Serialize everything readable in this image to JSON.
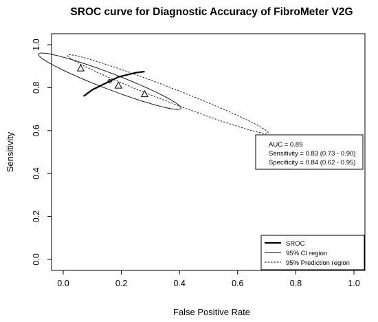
{
  "chart_data": {
    "type": "scatter",
    "title": "SROC curve for Diagnostic Accuracy of FibroMeter V2G",
    "xlabel": "False Positive Rate",
    "ylabel": "Sensitivity",
    "xlim": [
      0.0,
      1.0
    ],
    "ylim": [
      0.0,
      1.0
    ],
    "xticks": [
      "0.0",
      "0.2",
      "0.4",
      "0.6",
      "0.8",
      "1.0"
    ],
    "yticks": [
      "0.0",
      "0.2",
      "0.4",
      "0.6",
      "0.8",
      "1.0"
    ],
    "grid": false,
    "legend_position": "bottom-right",
    "annotation": {
      "auc": "AUC = 0.89",
      "sensitivity": "Sensitivity = 0.83 (0.73 - 0.90)",
      "specificity": "Specificity = 0.84 (0.62 - 0.95)"
    },
    "summary_point": {
      "x": 0.16,
      "y": 0.83
    },
    "studies": [
      {
        "x": 0.06,
        "y": 0.89
      },
      {
        "x": 0.19,
        "y": 0.81
      },
      {
        "x": 0.28,
        "y": 0.77
      }
    ],
    "series": [
      {
        "name": "SROC",
        "style": "solid-thick",
        "points": [
          [
            0.07,
            0.76
          ],
          [
            0.1,
            0.79
          ],
          [
            0.13,
            0.81
          ],
          [
            0.16,
            0.83
          ],
          [
            0.19,
            0.85
          ],
          [
            0.22,
            0.86
          ],
          [
            0.25,
            0.87
          ],
          [
            0.28,
            0.875
          ]
        ]
      },
      {
        "name": "95% CI region",
        "style": "solid-thin",
        "ellipse": {
          "cx": 0.16,
          "cy": 0.83,
          "x_radius": 0.245,
          "y_radius": 0.04,
          "tilt_x": 0.245,
          "tilt_y": -0.125
        }
      },
      {
        "name": "95% Prediction region",
        "style": "dashed",
        "ellipse": {
          "cx": 0.36,
          "cy": 0.77,
          "x_radius": 0.355,
          "y_radius": 0.035,
          "tilt_x": 0.345,
          "tilt_y": -0.18
        }
      }
    ],
    "colors": {
      "line": "#000000",
      "background": "#ffffff"
    }
  }
}
